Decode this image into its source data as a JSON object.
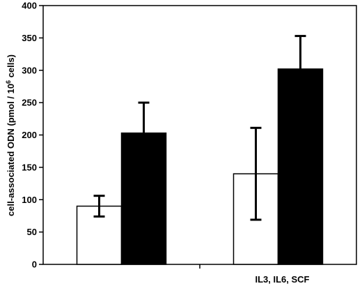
{
  "chart_data": {
    "type": "bar",
    "categories": [
      "",
      "IL3, IL6, SCF"
    ],
    "series": [
      {
        "values": [
          90,
          140
        ],
        "error_low": [
          74,
          69
        ],
        "error_high": [
          106,
          211
        ],
        "color": "#ffffff"
      },
      {
        "values": [
          203,
          302
        ],
        "error_high": [
          250,
          353
        ],
        "color": "#000000"
      }
    ],
    "ylabel": "cell-associated ODN (pmol / 10^6 cells)",
    "ylabel_parts": {
      "before": "cell-associated ODN (pmol / 10",
      "sup": "6",
      "after": " cells)"
    },
    "ylim": [
      0,
      400
    ],
    "yticks": [
      0,
      50,
      100,
      150,
      200,
      250,
      300,
      350,
      400
    ],
    "grid": false,
    "legend": "none"
  }
}
